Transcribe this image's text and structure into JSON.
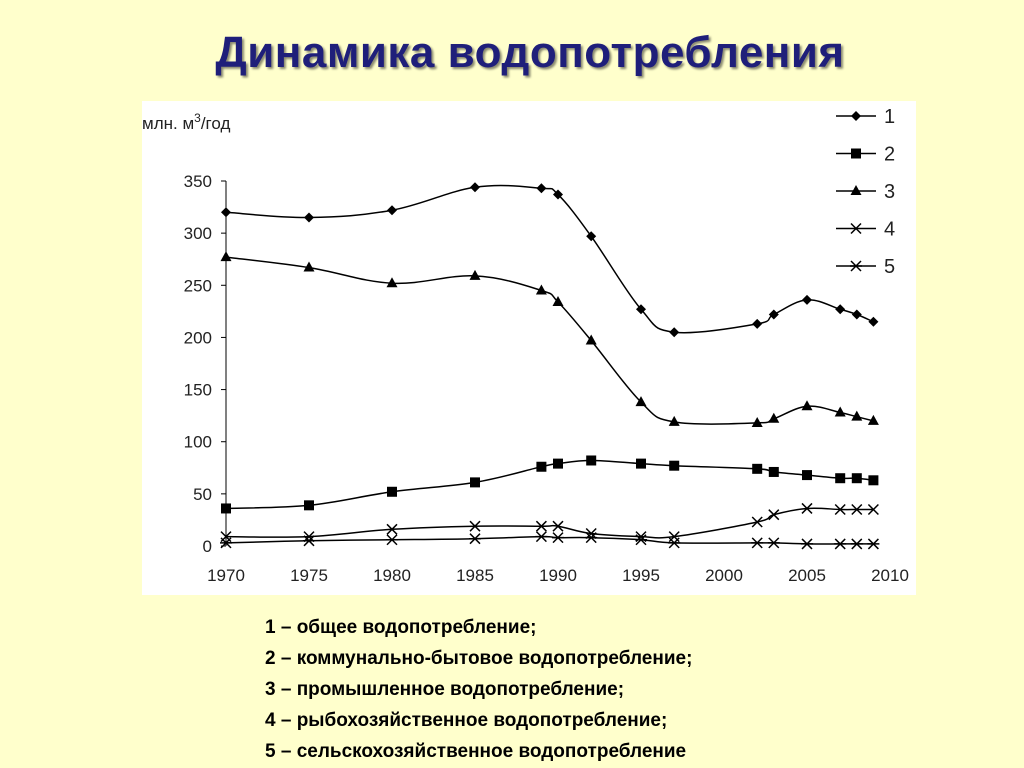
{
  "slide": {
    "title": "Динамика водопотребления",
    "notes": [
      "1 – общее водопотребление;",
      "2 – коммунально-бытовое водопотребление;",
      "3 – промышленное водопотребление;",
      "4 – рыбохозяйственное водопотребление;",
      "5 – сельскохозяйственное водопотребление"
    ]
  },
  "colors": {
    "background": "#ffffcc",
    "title": "#1f1f7a",
    "series": "#000000"
  },
  "chart_data": {
    "type": "line",
    "ylabel": "млн. м³/год",
    "ylabel_main": "млн. м",
    "ylabel_sup": "3",
    "ylabel_tail": "/год",
    "xlim": [
      1970,
      2010
    ],
    "ylim": [
      0,
      350
    ],
    "xticks": [
      "1970",
      "1975",
      "1980",
      "1985",
      "1990",
      "1995",
      "2000",
      "2005",
      "2010"
    ],
    "yticks": [
      "0",
      "50",
      "100",
      "150",
      "200",
      "250",
      "300",
      "350"
    ],
    "grid": false,
    "legend_position": "top-right",
    "series": [
      {
        "name": "1",
        "marker": "diamond",
        "x": [
          1970,
          1975,
          1980,
          1985,
          1989,
          1990,
          1992,
          1995,
          1997,
          2002,
          2003,
          2005,
          2007,
          2008,
          2009
        ],
        "y": [
          320,
          315,
          322,
          344,
          343,
          337,
          297,
          227,
          205,
          213,
          222,
          236,
          227,
          222,
          215
        ]
      },
      {
        "name": "2",
        "marker": "square",
        "x": [
          1970,
          1975,
          1980,
          1985,
          1989,
          1990,
          1992,
          1995,
          1997,
          2002,
          2003,
          2005,
          2007,
          2008,
          2009
        ],
        "y": [
          36,
          39,
          52,
          61,
          76,
          79,
          82,
          79,
          77,
          74,
          71,
          68,
          65,
          65,
          63
        ]
      },
      {
        "name": "3",
        "marker": "triangle",
        "x": [
          1970,
          1975,
          1980,
          1985,
          1989,
          1990,
          1992,
          1995,
          1997,
          2002,
          2003,
          2005,
          2007,
          2008,
          2009
        ],
        "y": [
          277,
          267,
          252,
          259,
          245,
          234,
          197,
          138,
          119,
          118,
          122,
          134,
          128,
          124,
          120
        ]
      },
      {
        "name": "4",
        "marker": "x",
        "x": [
          1970,
          1975,
          1980,
          1985,
          1989,
          1990,
          1992,
          1995,
          1997,
          2002,
          2003,
          2005,
          2007,
          2008,
          2009
        ],
        "y": [
          9,
          9,
          16,
          19,
          19,
          19,
          12,
          9,
          9,
          23,
          30,
          36,
          35,
          35,
          35
        ]
      },
      {
        "name": "5",
        "marker": "asterisk",
        "x": [
          1970,
          1975,
          1980,
          1985,
          1989,
          1990,
          1992,
          1995,
          1997,
          2002,
          2003,
          2005,
          2007,
          2008,
          2009
        ],
        "y": [
          3,
          5,
          6,
          7,
          9,
          8,
          8,
          6,
          3,
          3,
          3,
          2,
          2,
          2,
          2
        ]
      }
    ]
  }
}
